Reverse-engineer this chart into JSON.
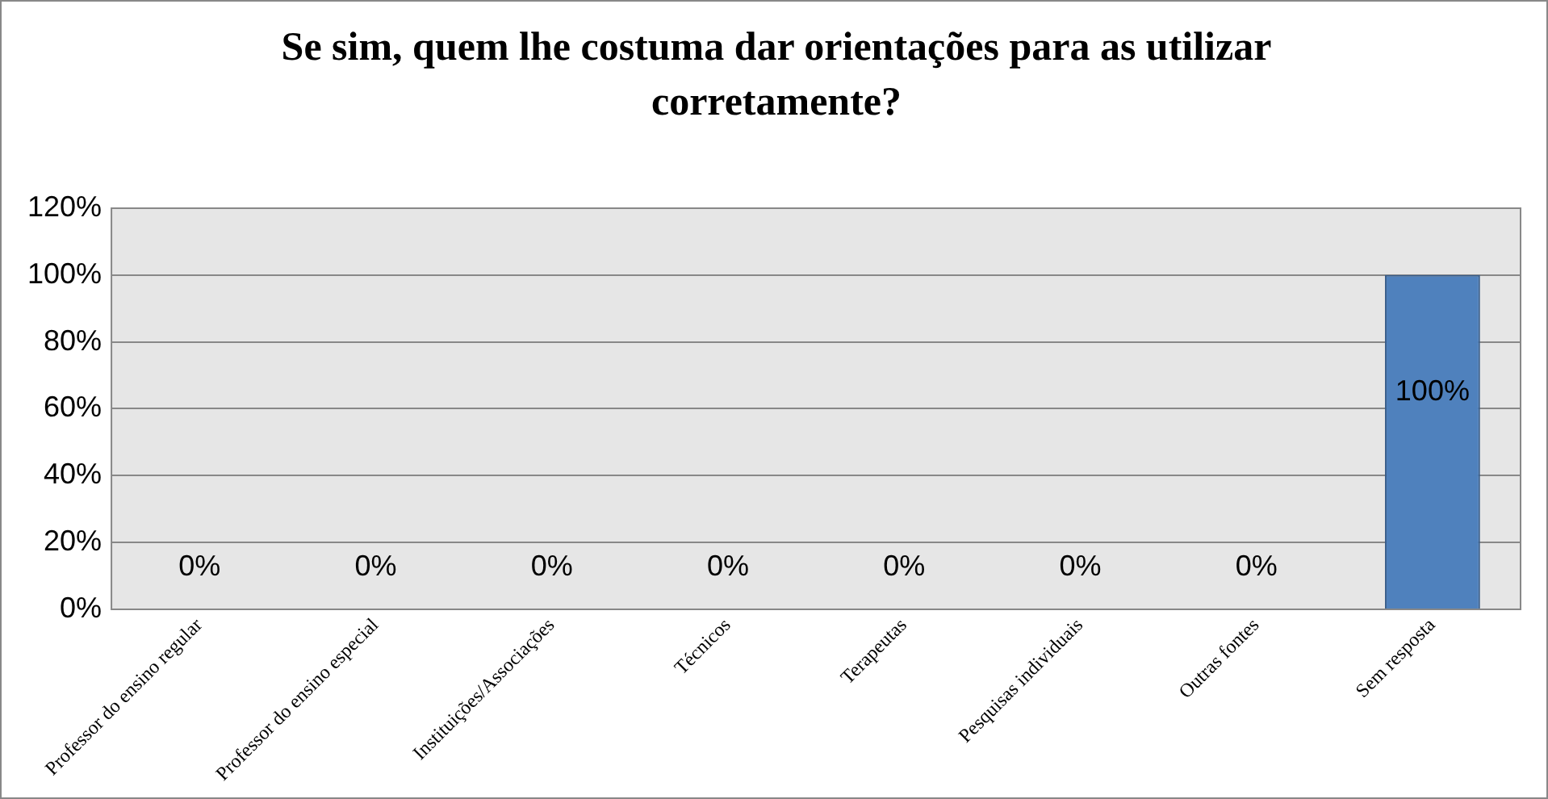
{
  "chart_data": {
    "type": "bar",
    "title": "Se sim, quem lhe costuma dar orientações para as utilizar corretamente?",
    "categories": [
      "Professor do ensino regular",
      "Professor do ensino especial",
      "Instituições/Associações",
      "Técnicos",
      "Terapeutas",
      "Pesquisas individuais",
      "Outras fontes",
      "Sem resposta"
    ],
    "values": [
      0,
      0,
      0,
      0,
      0,
      0,
      0,
      100
    ],
    "value_labels": [
      "0%",
      "0%",
      "0%",
      "0%",
      "0%",
      "0%",
      "0%",
      "100%"
    ],
    "color": "#4f81bd",
    "ylim": [
      0,
      120
    ],
    "yticks": [
      {
        "value": 0,
        "label": "0%"
      },
      {
        "value": 20,
        "label": "20%"
      },
      {
        "value": 40,
        "label": "40%"
      },
      {
        "value": 60,
        "label": "60%"
      },
      {
        "value": 80,
        "label": "80%"
      },
      {
        "value": 100,
        "label": "100%"
      },
      {
        "value": 120,
        "label": "120%"
      }
    ],
    "grid": "y",
    "legend": false
  }
}
